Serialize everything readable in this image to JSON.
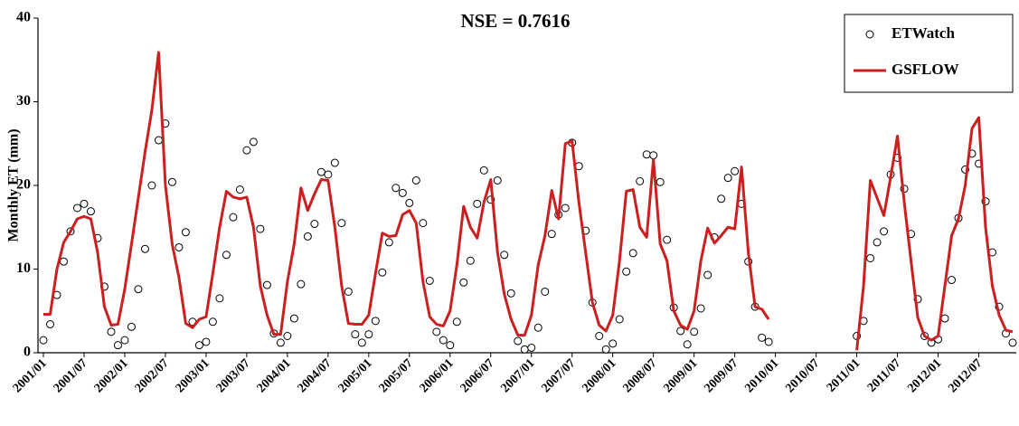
{
  "chart_data": {
    "type": "line",
    "title": "NSE = 0.7616",
    "y_label": "Monthly ET (mm)",
    "categories": [
      "2001/01",
      null,
      null,
      null,
      null,
      null,
      "2001/07",
      null,
      null,
      null,
      null,
      null,
      "2002/01",
      null,
      null,
      null,
      null,
      null,
      "2002/07",
      null,
      null,
      null,
      null,
      null,
      "2003/01",
      null,
      null,
      null,
      null,
      null,
      "2003/07",
      null,
      null,
      null,
      null,
      null,
      "2004/01",
      null,
      null,
      null,
      null,
      null,
      "2004/07",
      null,
      null,
      null,
      null,
      null,
      "2005/01",
      null,
      null,
      null,
      null,
      null,
      "2005/07",
      null,
      null,
      null,
      null,
      null,
      "2006/01",
      null,
      null,
      null,
      null,
      null,
      "2006/07",
      null,
      null,
      null,
      null,
      null,
      "2007/01",
      null,
      null,
      null,
      null,
      null,
      "2007/07",
      null,
      null,
      null,
      null,
      null,
      "2008/01",
      null,
      null,
      null,
      null,
      null,
      "2008/07",
      null,
      null,
      null,
      null,
      null,
      "2009/01",
      null,
      null,
      null,
      null,
      null,
      "2009/07",
      null,
      null,
      null,
      null,
      null,
      "2010/01",
      null,
      null,
      null,
      null,
      null,
      "2010/07",
      null,
      null,
      null,
      null,
      null,
      "2011/01",
      null,
      null,
      null,
      null,
      null,
      "2011/07",
      null,
      null,
      null,
      null,
      null,
      "2012/01",
      null,
      null,
      null,
      null,
      null,
      "2012/07",
      null,
      null,
      null,
      null,
      null
    ],
    "series": [
      {
        "name": "ETWatch",
        "color": "#000000",
        "marker": "circle",
        "values": [
          1.5,
          3.4,
          6.9,
          10.9,
          14.5,
          17.3,
          17.8,
          16.9,
          13.7,
          7.9,
          2.5,
          0.9,
          1.5,
          3.1,
          7.6,
          12.4,
          20.0,
          25.4,
          27.4,
          20.4,
          12.6,
          14.4,
          3.7,
          0.9,
          1.3,
          3.7,
          6.5,
          11.7,
          16.2,
          19.5,
          24.2,
          25.2,
          14.8,
          8.1,
          2.3,
          1.2,
          2.0,
          4.1,
          8.2,
          13.9,
          15.4,
          21.6,
          21.3,
          22.7,
          15.5,
          7.3,
          2.2,
          1.2,
          2.2,
          3.8,
          9.6,
          13.2,
          19.7,
          19.1,
          17.9,
          20.6,
          15.5,
          8.6,
          2.5,
          1.5,
          0.9,
          3.7,
          8.4,
          11.0,
          17.8,
          21.8,
          18.3,
          20.6,
          11.7,
          7.1,
          1.4,
          0.4,
          0.6,
          3.0,
          7.3,
          14.2,
          16.5,
          17.3,
          25.1,
          22.3,
          14.6,
          6.0,
          2.0,
          0.4,
          1.1,
          4.0,
          9.7,
          11.9,
          20.5,
          23.7,
          23.6,
          20.4,
          13.5,
          5.4,
          2.6,
          1.0,
          2.5,
          5.3,
          9.3,
          13.8,
          18.4,
          20.9,
          21.7,
          17.8,
          10.9,
          5.5,
          1.8,
          1.3,
          null,
          null,
          null,
          null,
          null,
          null,
          null,
          null,
          null,
          null,
          null,
          null,
          2.0,
          3.8,
          11.3,
          13.2,
          14.5,
          21.3,
          23.3,
          19.6,
          14.2,
          6.4,
          2.0,
          1.2,
          1.6,
          4.1,
          8.7,
          16.1,
          21.9,
          23.8,
          22.6,
          18.1,
          12.0,
          5.5,
          2.3,
          1.2
        ]
      },
      {
        "name": "GSFLOW",
        "color": "#cc1f1f",
        "marker": "line",
        "values": [
          4.6,
          4.6,
          10.0,
          13.2,
          14.5,
          16.0,
          16.3,
          16.0,
          12.0,
          5.5,
          3.3,
          3.4,
          7.6,
          13.0,
          18.5,
          24.0,
          29.0,
          35.9,
          20.0,
          13.0,
          9.0,
          3.5,
          3.0,
          4.0,
          4.3,
          9.5,
          15.0,
          19.3,
          18.6,
          18.4,
          18.6,
          15.0,
          8.0,
          4.5,
          2.2,
          2.2,
          8.5,
          13.0,
          19.7,
          17.0,
          19.0,
          20.7,
          20.6,
          15.0,
          8.0,
          3.5,
          3.4,
          3.4,
          4.5,
          9.5,
          14.3,
          13.9,
          14.0,
          16.5,
          17.0,
          15.5,
          8.5,
          4.3,
          3.4,
          3.2,
          5.0,
          10.5,
          17.5,
          15.0,
          13.7,
          18.0,
          20.7,
          12.0,
          7.0,
          4.0,
          2.1,
          2.1,
          4.5,
          10.5,
          14.0,
          19.4,
          16.0,
          25.0,
          25.3,
          18.0,
          12.0,
          6.0,
          3.3,
          2.6,
          4.5,
          11.0,
          19.3,
          19.5,
          15.0,
          13.8,
          23.1,
          13.0,
          11.0,
          5.0,
          3.3,
          2.8,
          5.0,
          11.0,
          14.9,
          13.1,
          14.0,
          15.0,
          14.8,
          22.2,
          12.0,
          5.5,
          5.2,
          4.0,
          null,
          null,
          null,
          null,
          null,
          null,
          null,
          null,
          null,
          null,
          null,
          null,
          0.3,
          8.0,
          20.6,
          18.5,
          16.4,
          21.0,
          25.9,
          18.0,
          11.0,
          4.2,
          2.0,
          1.5,
          2.0,
          8.0,
          14.0,
          16.0,
          20.0,
          26.8,
          28.1,
          15.0,
          8.0,
          4.5,
          2.7,
          2.5
        ]
      }
    ],
    "ylim": [
      0,
      40
    ],
    "yticks": [
      0,
      10,
      20,
      30,
      40
    ],
    "grid": false,
    "legend": "upper right"
  }
}
